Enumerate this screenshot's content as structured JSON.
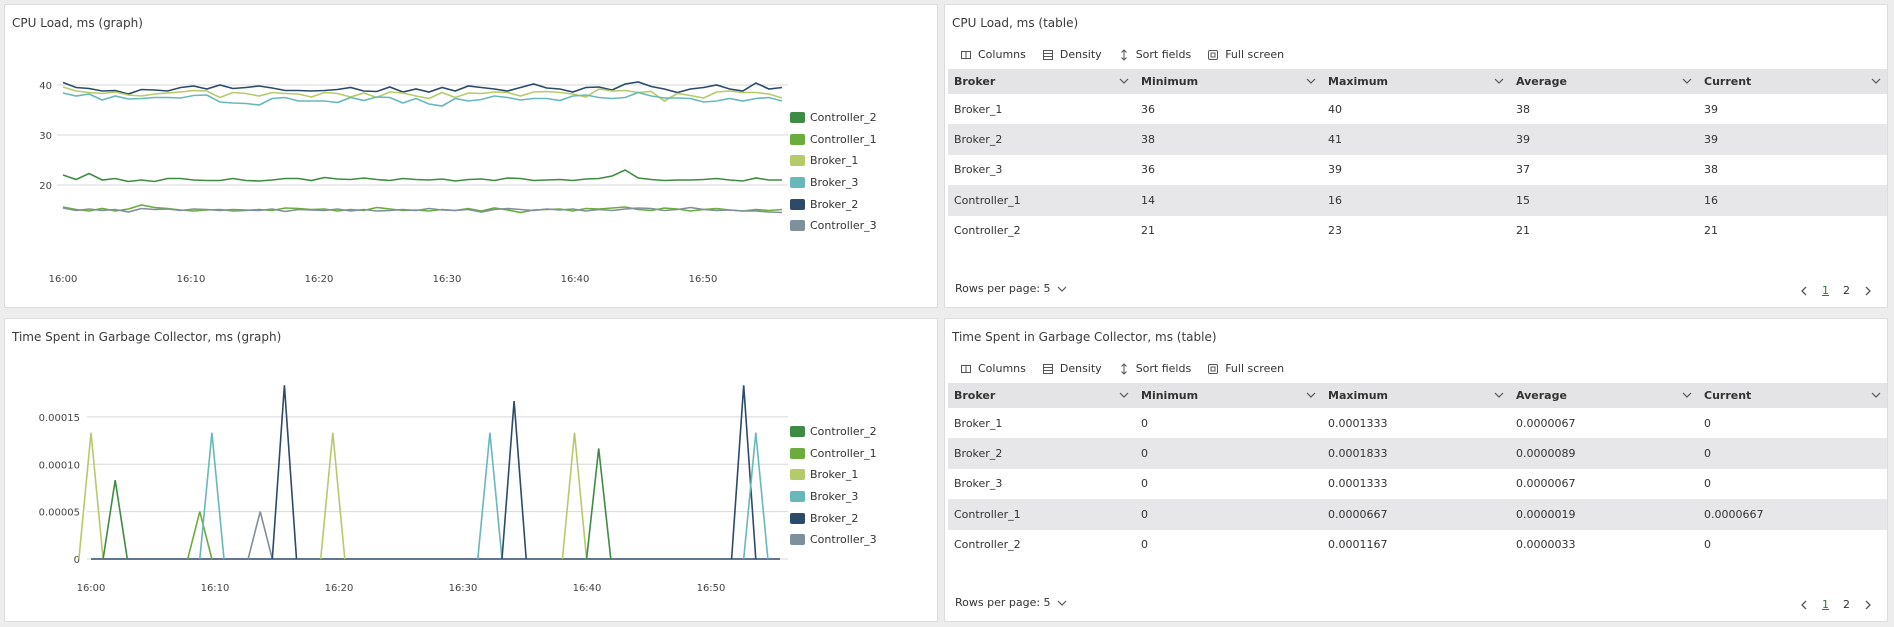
{
  "colors": {
    "Controller_2": "#3e8c43",
    "Controller_1": "#6aad3d",
    "Broker_1": "#b5cb6a",
    "Broker_3": "#67b8bb",
    "Broker_2": "#2c4a6a",
    "Controller_3": "#7f8f9b"
  },
  "legend": [
    "Controller_2",
    "Controller_1",
    "Broker_1",
    "Broker_3",
    "Broker_2",
    "Controller_3"
  ],
  "cpu_graph": {
    "title": "CPU Load, ms (graph)",
    "chart_data": {
      "type": "line",
      "x_labels": [
        "16:00",
        "16:10",
        "16:20",
        "16:30",
        "16:40",
        "16:50"
      ],
      "y_ticks": [
        20,
        30,
        40
      ],
      "ylim": [
        12,
        44
      ],
      "points_per_series": 56,
      "series": [
        {
          "name": "Broker_2",
          "values": [
            40.5,
            39.5,
            39.3,
            38.8,
            38.9,
            38.2,
            39.1,
            39,
            38.8,
            39.5,
            39.8,
            39.2,
            40,
            39.3,
            39.5,
            39.8,
            39.4,
            38.9,
            38.9,
            38.8,
            38.9,
            39.1,
            39.5,
            38.8,
            38.7,
            39.6,
            38.6,
            39.2,
            38.6,
            39.5,
            38.8,
            39.8,
            39.5,
            39.2,
            38.8,
            39.5,
            40.2,
            39.4,
            39.2,
            38.6,
            39.5,
            39.6,
            39,
            40.2,
            40.6,
            39.7,
            39.2,
            38.5,
            39.2,
            39.5,
            40,
            39.2,
            38.8,
            40.4,
            39.2,
            39.5
          ]
        },
        {
          "name": "Broker_1",
          "values": [
            39.6,
            38.8,
            38.5,
            38.3,
            38.6,
            38,
            37.8,
            38.2,
            38.4,
            38.6,
            38.9,
            38.8,
            37.5,
            38.5,
            38.3,
            37.8,
            38.5,
            38.3,
            38.2,
            37.6,
            38.5,
            38.3,
            37.6,
            38.4,
            37.5,
            38.6,
            38.4,
            37.8,
            37.3,
            38.5,
            37.5,
            38.4,
            38.3,
            38.6,
            38.5,
            37.8,
            38.6,
            38.7,
            38.5,
            38.2,
            37.6,
            39.2,
            38.8,
            38.9,
            38.5,
            38.7,
            36.8,
            38.3,
            37.9,
            37.4,
            38.6,
            38.8,
            38.5,
            38.5,
            38.2,
            37.4
          ]
        },
        {
          "name": "Broker_3",
          "values": [
            38.4,
            37.8,
            38.2,
            37,
            37.8,
            37.2,
            37.3,
            37.5,
            37.5,
            37.4,
            37.9,
            38,
            36.6,
            36.4,
            36.3,
            36,
            37.3,
            37.5,
            36.8,
            36.8,
            36.8,
            36.5,
            37.5,
            36.9,
            37.6,
            37.5,
            36.4,
            37.3,
            36.2,
            35.8,
            37.3,
            36.8,
            37.1,
            37.8,
            37.5,
            37,
            37.3,
            37.3,
            36.9,
            37.8,
            38,
            37.5,
            37.3,
            37.5,
            38.5,
            37.8,
            37.4,
            37.4,
            37.3,
            36.6,
            36.8,
            37.3,
            36.8,
            37.3,
            37.5,
            36.8
          ]
        },
        {
          "name": "Controller_2",
          "values": [
            22,
            21.1,
            22.3,
            21,
            21.3,
            20.7,
            21,
            20.7,
            21.3,
            21.3,
            21,
            20.9,
            20.9,
            21.3,
            20.9,
            20.8,
            21,
            21.3,
            21.3,
            20.9,
            21.5,
            21.2,
            21.1,
            21.4,
            21.1,
            20.9,
            21.3,
            21.1,
            21,
            21.2,
            20.8,
            21.1,
            21.2,
            20.9,
            21.4,
            21.3,
            20.9,
            21,
            21.1,
            20.9,
            21.2,
            21.3,
            21.8,
            23,
            21.4,
            21.1,
            20.9,
            21,
            21,
            21.1,
            21.3,
            21,
            20.8,
            21.4,
            21,
            21
          ]
        },
        {
          "name": "Controller_1",
          "values": [
            15.6,
            15.1,
            14.8,
            15.3,
            14.8,
            15.2,
            16,
            15.5,
            15.3,
            15,
            14.8,
            15,
            15.1,
            14.8,
            14.9,
            15.1,
            14.9,
            15.4,
            15.3,
            15.1,
            15.2,
            14.8,
            15.1,
            14.9,
            15.5,
            15.2,
            14.9,
            15,
            14.8,
            15.1,
            14.9,
            15.3,
            14.8,
            15.4,
            15,
            14.5,
            15,
            15.1,
            15.2,
            14.8,
            15.3,
            15.2,
            15.4,
            15.6,
            15.1,
            14.9,
            15.4,
            15.2,
            14.8,
            15.1,
            15.3,
            15,
            14.8,
            15.1,
            14.9,
            15.1
          ]
        },
        {
          "name": "Controller_3",
          "values": [
            15.4,
            14.9,
            15.2,
            14.9,
            15.1,
            14.6,
            15.3,
            15.1,
            15.2,
            14.9,
            15.2,
            15.1,
            14.9,
            15.1,
            15,
            14.9,
            15.2,
            14.7,
            15.1,
            15,
            14.9,
            15.2,
            14.8,
            15.1,
            14.8,
            14.9,
            15.1,
            14.9,
            15.3,
            15,
            14.9,
            15.1,
            14.6,
            15.1,
            15.3,
            15.1,
            14.9,
            15.2,
            15,
            15.2,
            14.8,
            15.1,
            14.9,
            15.2,
            15.4,
            15.3,
            14.9,
            15.1,
            15.5,
            15.1,
            14.9,
            15,
            14.8,
            14.8,
            14.6,
            14.5
          ]
        }
      ]
    }
  },
  "gc_graph": {
    "title": "Time Spent in Garbage Collector, ms (graph)",
    "chart_data": {
      "type": "line",
      "x_labels": [
        "16:00",
        "16:10",
        "16:20",
        "16:30",
        "16:40",
        "16:50"
      ],
      "y_ticks": [
        "0",
        "0.00005",
        "0.00010",
        "0.00015"
      ],
      "ylim": [
        0,
        0.00019
      ],
      "points_per_series": 58,
      "spikes": [
        {
          "series": "Broker_1",
          "index": 0,
          "value": 0.0001333
        },
        {
          "series": "Controller_2",
          "index": 2,
          "value": 8.33e-05
        },
        {
          "series": "Controller_1",
          "index": 9,
          "value": 5e-05
        },
        {
          "series": "Broker_3",
          "index": 10,
          "value": 0.0001333
        },
        {
          "series": "Controller_3",
          "index": 14,
          "value": 5e-05
        },
        {
          "series": "Broker_2",
          "index": 16,
          "value": 0.0001833
        },
        {
          "series": "Broker_1",
          "index": 20,
          "value": 0.0001333
        },
        {
          "series": "Broker_3",
          "index": 33,
          "value": 0.0001333
        },
        {
          "series": "Broker_2",
          "index": 35,
          "value": 0.0001667
        },
        {
          "series": "Broker_1",
          "index": 40,
          "value": 0.0001333
        },
        {
          "series": "Controller_2",
          "index": 42,
          "value": 0.0001167
        },
        {
          "series": "Broker_2",
          "index": 54,
          "value": 0.0001833
        },
        {
          "series": "Broker_3",
          "index": 55,
          "value": 0.0001333
        }
      ]
    }
  },
  "cpu_table": {
    "title": "CPU Load, ms (table)",
    "toolbar": [
      "Columns",
      "Density",
      "Sort fields",
      "Full screen"
    ],
    "headers": [
      "Broker",
      "Minimum",
      "Maximum",
      "Average",
      "Current"
    ],
    "rows": [
      [
        "Broker_1",
        "36",
        "40",
        "38",
        "39"
      ],
      [
        "Broker_2",
        "38",
        "41",
        "39",
        "39"
      ],
      [
        "Broker_3",
        "36",
        "39",
        "37",
        "38"
      ],
      [
        "Controller_1",
        "14",
        "16",
        "15",
        "16"
      ],
      [
        "Controller_2",
        "21",
        "23",
        "21",
        "21"
      ]
    ],
    "rows_per_page": "Rows per page: 5",
    "pages": [
      "1",
      "2"
    ]
  },
  "gc_table": {
    "title": "Time Spent in Garbage Collector, ms (table)",
    "toolbar": [
      "Columns",
      "Density",
      "Sort fields",
      "Full screen"
    ],
    "headers": [
      "Broker",
      "Minimum",
      "Maximum",
      "Average",
      "Current"
    ],
    "rows": [
      [
        "Broker_1",
        "0",
        "0.0001333",
        "0.0000067",
        "0"
      ],
      [
        "Broker_2",
        "0",
        "0.0001833",
        "0.0000089",
        "0"
      ],
      [
        "Broker_3",
        "0",
        "0.0001333",
        "0.0000067",
        "0"
      ],
      [
        "Controller_1",
        "0",
        "0.0000667",
        "0.0000019",
        "0.0000667"
      ],
      [
        "Controller_2",
        "0",
        "0.0001167",
        "0.0000033",
        "0"
      ]
    ],
    "rows_per_page": "Rows per page: 5",
    "pages": [
      "1",
      "2"
    ]
  }
}
